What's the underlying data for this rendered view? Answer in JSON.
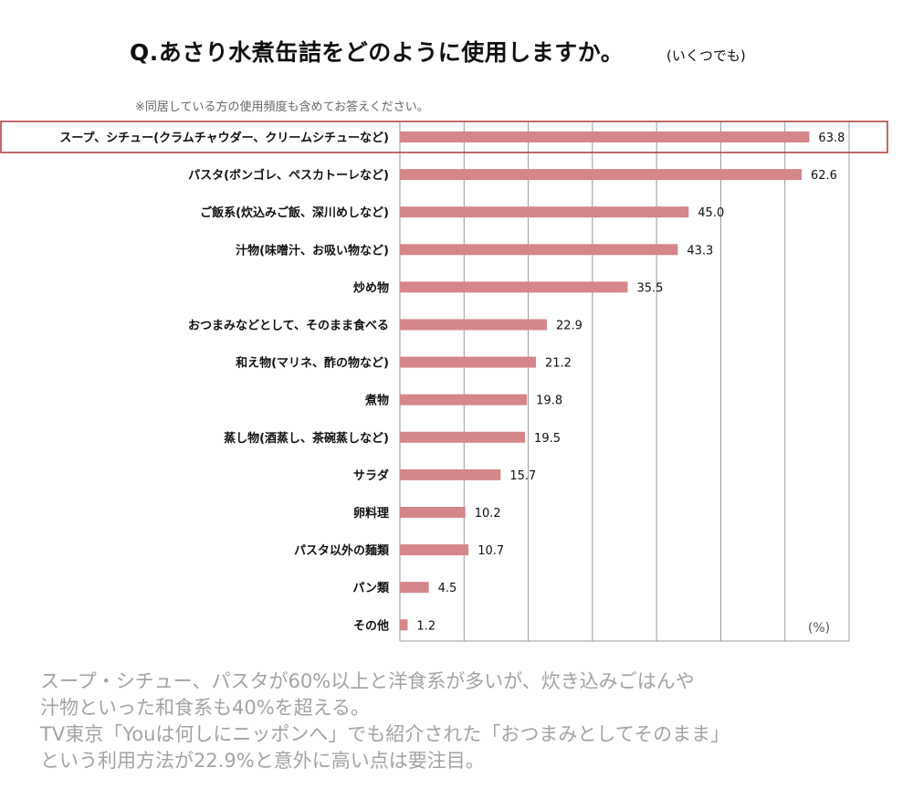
{
  "header": {
    "title": "Q.あさり水煮缶詰をどのように使用しますか。",
    "title_note": "(いくつでも)",
    "subnote": "※同居している方の使用頻度も含めてお答えください。"
  },
  "chart_data": {
    "type": "bar",
    "orientation": "horizontal",
    "title": "Q.あさり水煮缶詰をどのように使用しますか。",
    "unit_label": "(%)",
    "categories": [
      "スープ、シチュー(クラムチャウダー、クリームシチューなど)",
      "パスタ(ボンゴレ、ペスカトーレなど)",
      "ご飯系(炊込みご飯、深川めしなど)",
      "汁物(味噌汁、お吸い物など)",
      "炒め物",
      "おつまみなどとして、そのまま食べる",
      "和え物(マリネ、酢の物など)",
      "煮物",
      "蒸し物(酒蒸し、茶碗蒸しなど)",
      "サラダ",
      "卵料理",
      "パスタ以外の麺類",
      "パン類",
      "その他"
    ],
    "values": [
      63.8,
      62.6,
      45.0,
      43.3,
      35.5,
      22.9,
      21.2,
      19.8,
      19.5,
      15.7,
      10.2,
      10.7,
      4.5,
      1.2
    ],
    "value_labels": [
      "63.8",
      "62.6",
      "45.0",
      "43.3",
      "35.5",
      "22.9",
      "21.2",
      "19.8",
      "19.5",
      "15.7",
      "10.2",
      "10.7",
      "4.5",
      "1.2"
    ],
    "xlim": [
      0,
      70
    ],
    "grid": true,
    "highlighted_category": "スープ、シチュー(クラムチャウダー、クリームシチューなど)",
    "bar_color": "#d5868a",
    "highlight_border_color": "#b3373b"
  },
  "caption": {
    "lines": [
      "スープ・シチュー、パスタが60%以上と洋食系が多いが、炊き込みごはんや",
      "汁物といった和食系も40%を超える。",
      "TV東京「Youは何しにニッポンへ」でも紹介された「おつまみとしてそのまま」",
      "という利用方法が22.9%と意外に高い点は要注目。"
    ]
  }
}
